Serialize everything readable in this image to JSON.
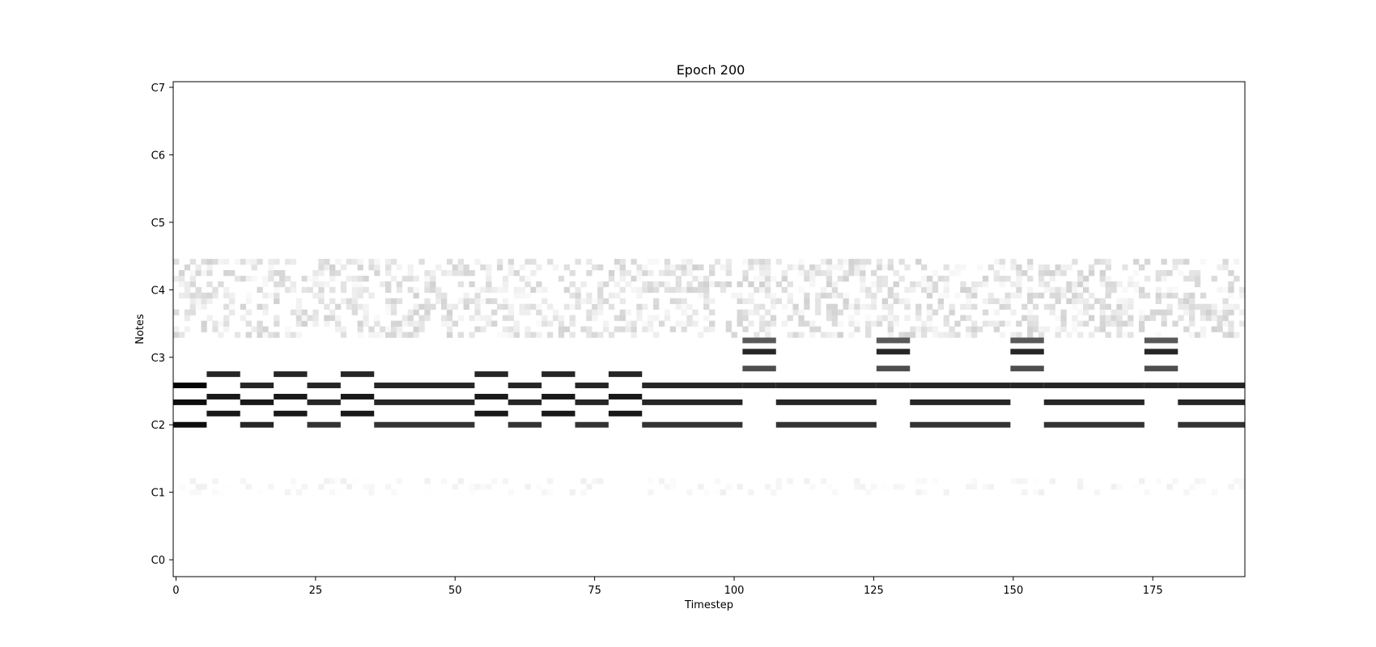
{
  "chart_data": {
    "type": "heatmap",
    "title": "Epoch 200",
    "xlabel": "Timestep",
    "ylabel": "Notes",
    "xlim": [
      -0.5,
      191.5
    ],
    "ylim": [
      -3,
      85
    ],
    "x_ticks": [
      0,
      25,
      50,
      75,
      100,
      125,
      150,
      175
    ],
    "y_ticks": [
      {
        "label": "C0",
        "pitch": 0
      },
      {
        "label": "C1",
        "pitch": 12
      },
      {
        "label": "C2",
        "pitch": 24
      },
      {
        "label": "C3",
        "pitch": 36
      },
      {
        "label": "C4",
        "pitch": 48
      },
      {
        "label": "C5",
        "pitch": 60
      },
      {
        "label": "C6",
        "pitch": 72
      },
      {
        "label": "C7",
        "pitch": 84
      }
    ],
    "colormap": "gray_r",
    "value_range": [
      0,
      1
    ],
    "grid": false,
    "segments": [
      {
        "start": 0,
        "end": 6,
        "notes": [
          {
            "p": 31,
            "v": 0.98
          },
          {
            "p": 28,
            "v": 0.95
          },
          {
            "p": 24,
            "v": 0.95
          }
        ]
      },
      {
        "start": 6,
        "end": 12,
        "notes": [
          {
            "p": 33,
            "v": 0.85
          },
          {
            "p": 29,
            "v": 0.9
          },
          {
            "p": 26,
            "v": 0.9
          }
        ]
      },
      {
        "start": 12,
        "end": 18,
        "notes": [
          {
            "p": 31,
            "v": 0.85
          },
          {
            "p": 28,
            "v": 0.9
          },
          {
            "p": 24,
            "v": 0.85
          }
        ]
      },
      {
        "start": 18,
        "end": 24,
        "notes": [
          {
            "p": 33,
            "v": 0.85
          },
          {
            "p": 29,
            "v": 0.9
          },
          {
            "p": 26,
            "v": 0.9
          }
        ]
      },
      {
        "start": 24,
        "end": 30,
        "notes": [
          {
            "p": 31,
            "v": 0.85
          },
          {
            "p": 28,
            "v": 0.85
          },
          {
            "p": 24,
            "v": 0.8
          }
        ]
      },
      {
        "start": 30,
        "end": 36,
        "notes": [
          {
            "p": 33,
            "v": 0.85
          },
          {
            "p": 29,
            "v": 0.9
          },
          {
            "p": 26,
            "v": 0.9
          }
        ]
      },
      {
        "start": 36,
        "end": 54,
        "notes": [
          {
            "p": 31,
            "v": 0.85
          },
          {
            "p": 28,
            "v": 0.85
          },
          {
            "p": 24,
            "v": 0.8
          }
        ]
      },
      {
        "start": 54,
        "end": 60,
        "notes": [
          {
            "p": 33,
            "v": 0.85
          },
          {
            "p": 29,
            "v": 0.9
          },
          {
            "p": 26,
            "v": 0.9
          }
        ]
      },
      {
        "start": 60,
        "end": 66,
        "notes": [
          {
            "p": 31,
            "v": 0.85
          },
          {
            "p": 28,
            "v": 0.85
          },
          {
            "p": 24,
            "v": 0.8
          }
        ]
      },
      {
        "start": 66,
        "end": 72,
        "notes": [
          {
            "p": 33,
            "v": 0.85
          },
          {
            "p": 29,
            "v": 0.9
          },
          {
            "p": 26,
            "v": 0.9
          }
        ]
      },
      {
        "start": 72,
        "end": 78,
        "notes": [
          {
            "p": 31,
            "v": 0.85
          },
          {
            "p": 28,
            "v": 0.85
          },
          {
            "p": 24,
            "v": 0.8
          }
        ]
      },
      {
        "start": 78,
        "end": 84,
        "notes": [
          {
            "p": 33,
            "v": 0.85
          },
          {
            "p": 29,
            "v": 0.9
          },
          {
            "p": 26,
            "v": 0.9
          }
        ]
      },
      {
        "start": 84,
        "end": 102,
        "notes": [
          {
            "p": 31,
            "v": 0.85
          },
          {
            "p": 28,
            "v": 0.85
          },
          {
            "p": 24,
            "v": 0.8
          }
        ]
      },
      {
        "start": 102,
        "end": 108,
        "notes": [
          {
            "p": 39,
            "v": 0.65
          },
          {
            "p": 37,
            "v": 0.85
          },
          {
            "p": 34,
            "v": 0.7
          },
          {
            "p": 31,
            "v": 0.85
          }
        ]
      },
      {
        "start": 108,
        "end": 126,
        "notes": [
          {
            "p": 31,
            "v": 0.85
          },
          {
            "p": 28,
            "v": 0.85
          },
          {
            "p": 24,
            "v": 0.8
          }
        ]
      },
      {
        "start": 126,
        "end": 132,
        "notes": [
          {
            "p": 39,
            "v": 0.65
          },
          {
            "p": 37,
            "v": 0.85
          },
          {
            "p": 34,
            "v": 0.7
          },
          {
            "p": 31,
            "v": 0.85
          }
        ]
      },
      {
        "start": 132,
        "end": 150,
        "notes": [
          {
            "p": 31,
            "v": 0.85
          },
          {
            "p": 28,
            "v": 0.85
          },
          {
            "p": 24,
            "v": 0.8
          }
        ]
      },
      {
        "start": 150,
        "end": 156,
        "notes": [
          {
            "p": 39,
            "v": 0.65
          },
          {
            "p": 37,
            "v": 0.85
          },
          {
            "p": 34,
            "v": 0.7
          },
          {
            "p": 31,
            "v": 0.85
          }
        ]
      },
      {
        "start": 156,
        "end": 174,
        "notes": [
          {
            "p": 31,
            "v": 0.85
          },
          {
            "p": 28,
            "v": 0.85
          },
          {
            "p": 24,
            "v": 0.8
          }
        ]
      },
      {
        "start": 174,
        "end": 180,
        "notes": [
          {
            "p": 39,
            "v": 0.65
          },
          {
            "p": 37,
            "v": 0.85
          },
          {
            "p": 34,
            "v": 0.7
          },
          {
            "p": 31,
            "v": 0.85
          }
        ]
      },
      {
        "start": 180,
        "end": 192,
        "notes": [
          {
            "p": 31,
            "v": 0.85
          },
          {
            "p": 28,
            "v": 0.85
          },
          {
            "p": 24,
            "v": 0.8
          }
        ]
      }
    ],
    "background_noise": {
      "pitch_range": [
        40,
        53
      ],
      "value_range": [
        0.02,
        0.18
      ],
      "low_pitch_range": [
        12,
        14
      ],
      "low_value_range": [
        0.0,
        0.06
      ]
    }
  }
}
